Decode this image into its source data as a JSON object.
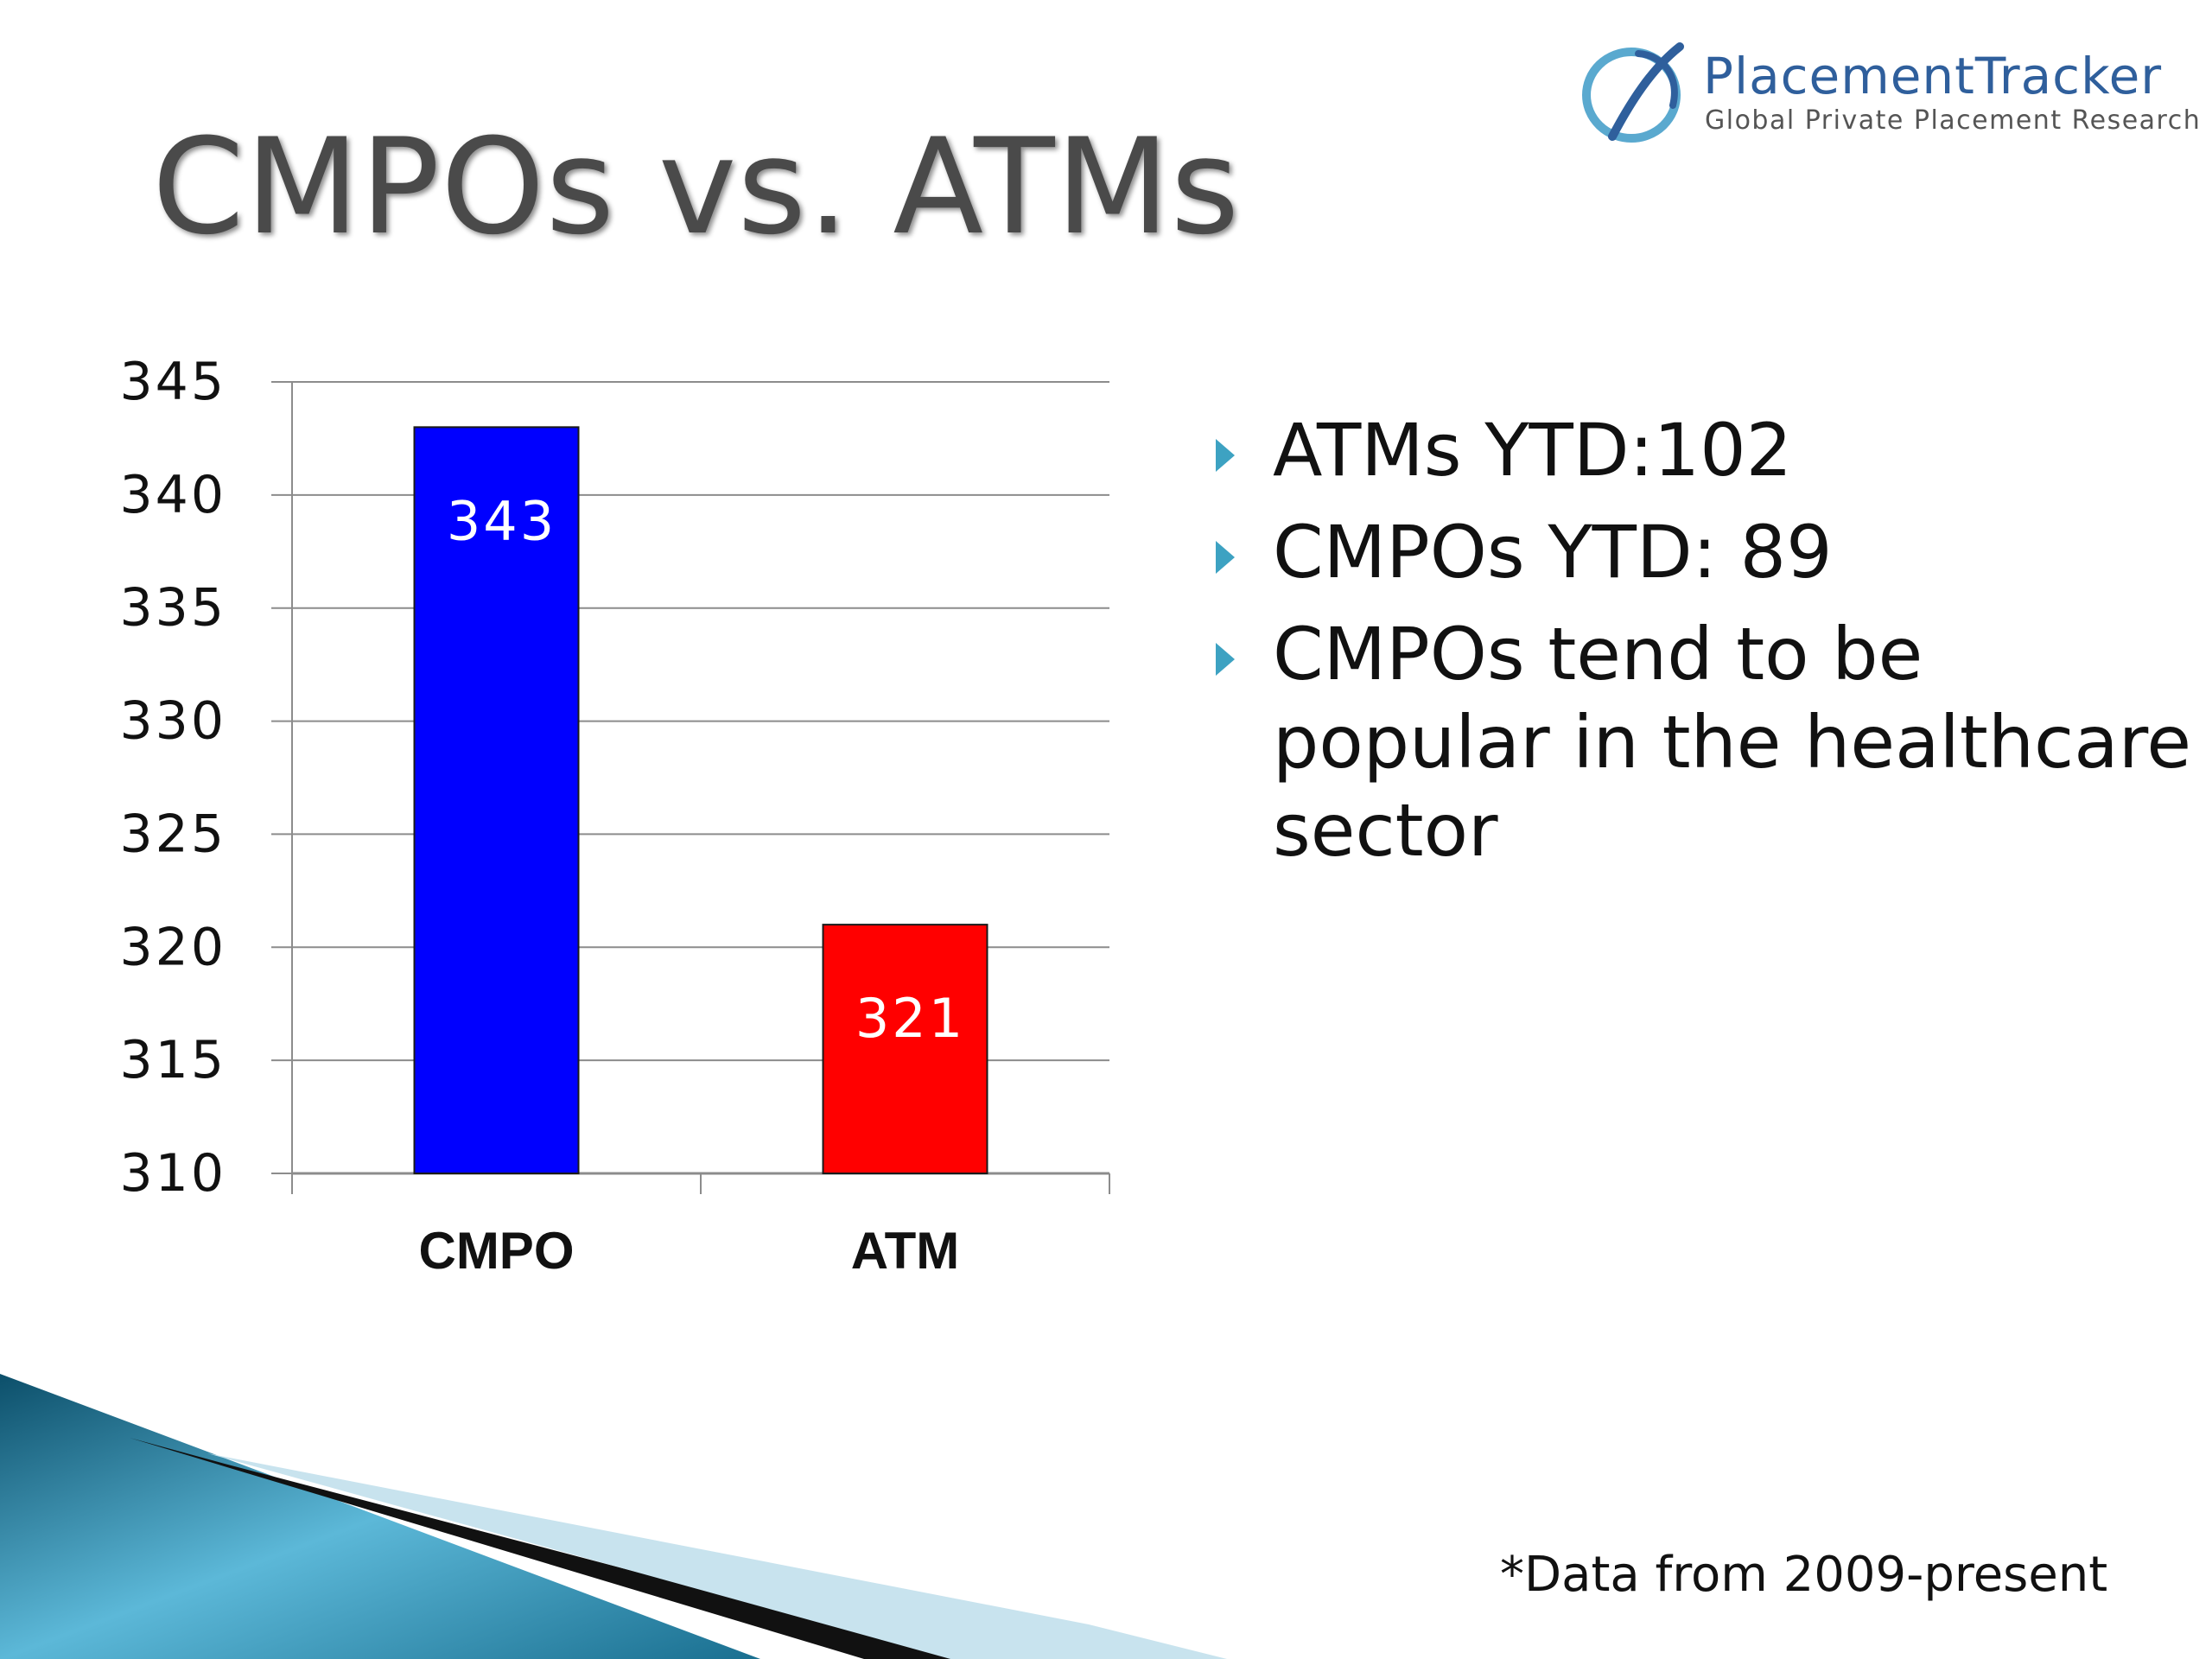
{
  "slide": {
    "title": "CMPOs vs. ATMs",
    "footnote": "*Data from 2009-present"
  },
  "logo": {
    "name": "PlacementTracker",
    "tagline": "Global Private Placement Research"
  },
  "bullets": [
    {
      "text": "ATMs YTD:102"
    },
    {
      "text": "CMPOs YTD: 89"
    },
    {
      "text": "CMPOs tend to be popular in the healthcare sector"
    }
  ],
  "colors": {
    "title": "#4a4a4a",
    "logo_blue": "#2f5f9c",
    "bullet_accent": "#3da2c2",
    "cmpo_bar": "#0000ff",
    "atm_bar": "#ff0000",
    "gridline": "#8c8c8c"
  },
  "chart_data": {
    "type": "bar",
    "categories": [
      "CMPO",
      "ATM"
    ],
    "values": [
      343,
      321
    ],
    "data_labels": [
      "343",
      "321"
    ],
    "bar_colors": [
      "#0000ff",
      "#ff0000"
    ],
    "ylim": [
      310,
      345
    ],
    "yticks": [
      310,
      315,
      320,
      325,
      330,
      335,
      340,
      345
    ],
    "title": "",
    "xlabel": "",
    "ylabel": "",
    "grid": true,
    "legend": "none"
  }
}
